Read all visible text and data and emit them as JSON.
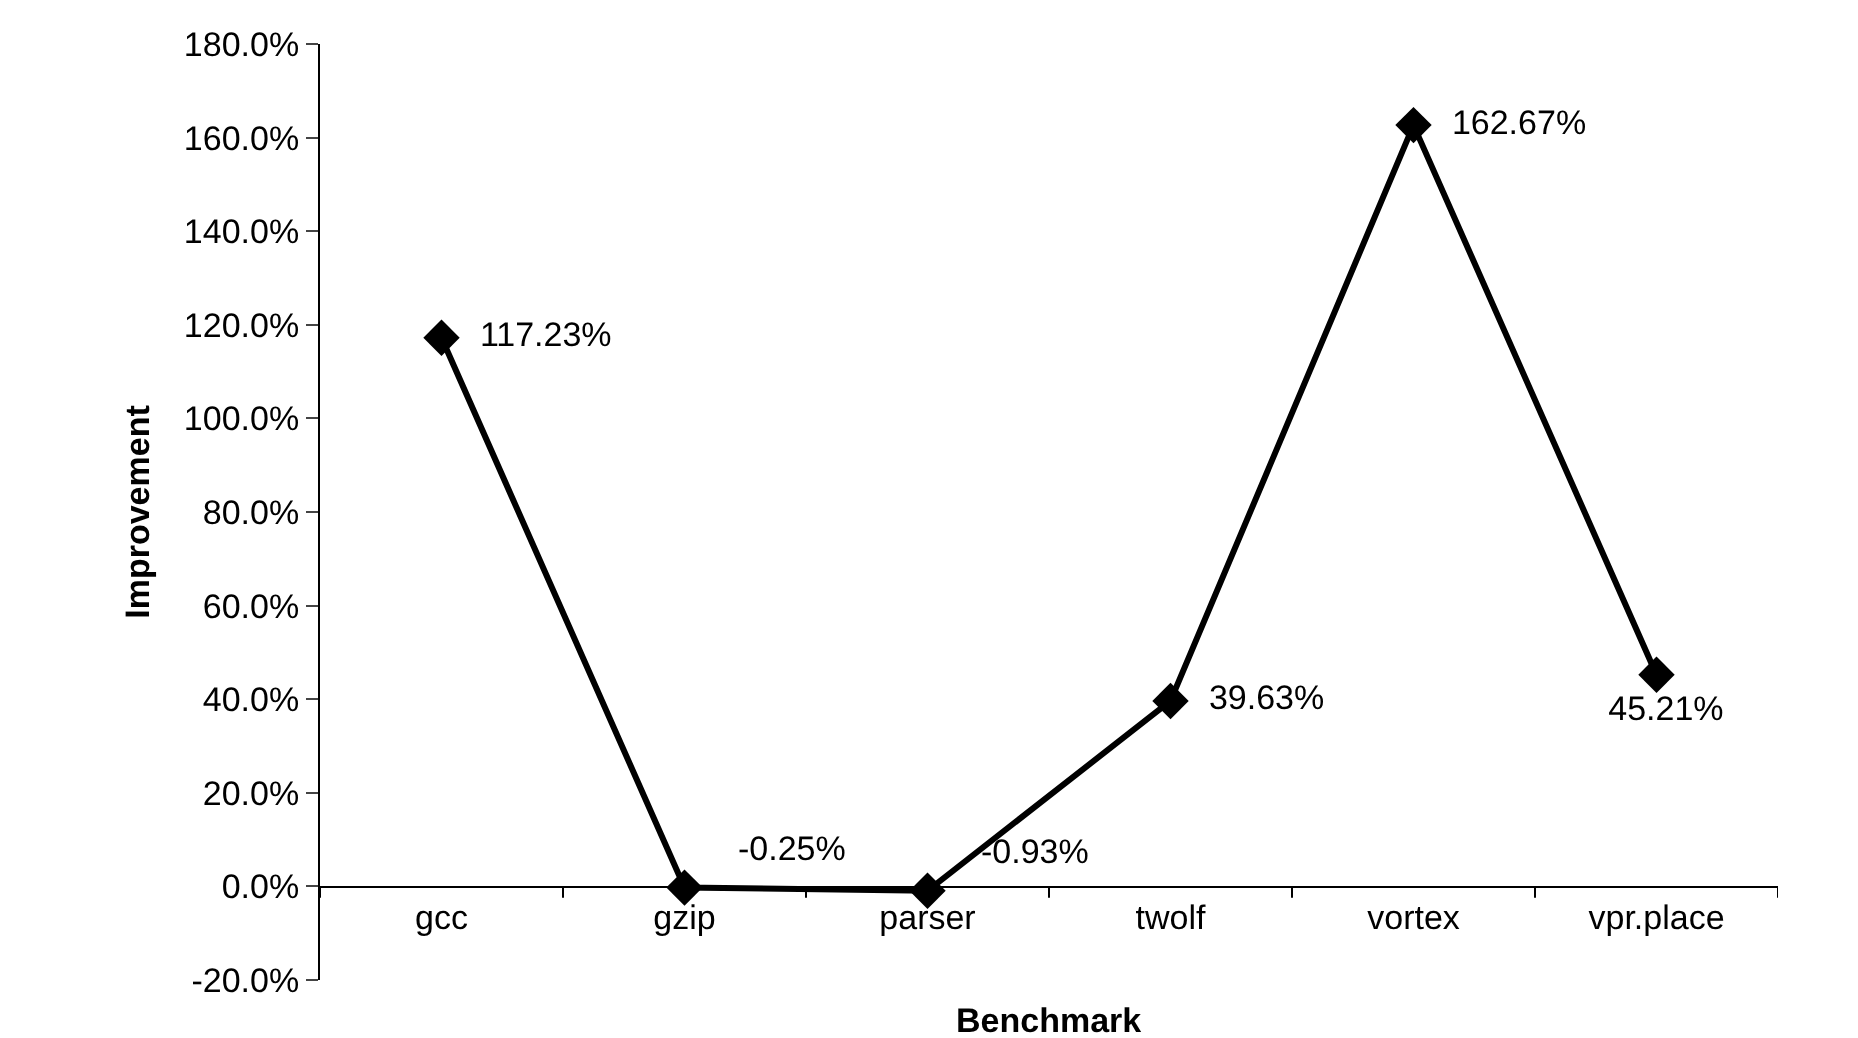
{
  "chart_data": {
    "type": "line",
    "xlabel": "Benchmark",
    "ylabel": "Improvement",
    "categories": [
      "gcc",
      "gzip",
      "parser",
      "twolf",
      "vortex",
      "vpr.place"
    ],
    "series": [
      {
        "color": "#000000",
        "values": [
          117.23,
          -0.25,
          -0.93,
          39.63,
          162.67,
          45.21
        ],
        "value_labels": [
          "117.23%",
          "-0.25%",
          "-0.93%",
          "39.63%",
          "162.67%",
          "45.21%"
        ]
      }
    ],
    "ylim": [
      -20,
      180
    ],
    "yticks": [
      {
        "value": -20,
        "label": "-20.0%"
      },
      {
        "value": 0,
        "label": "0.0%"
      },
      {
        "value": 20,
        "label": "20.0%"
      },
      {
        "value": 40,
        "label": "40.0%"
      },
      {
        "value": 60,
        "label": "60.0%"
      },
      {
        "value": 80,
        "label": "80.0%"
      },
      {
        "value": 100,
        "label": "100.0%"
      },
      {
        "value": 120,
        "label": "120.0%"
      },
      {
        "value": 140,
        "label": "140.0%"
      },
      {
        "value": 160,
        "label": "160.0%"
      },
      {
        "value": 180,
        "label": "180.0%"
      }
    ],
    "marker": "diamond",
    "line_style": "solid"
  }
}
